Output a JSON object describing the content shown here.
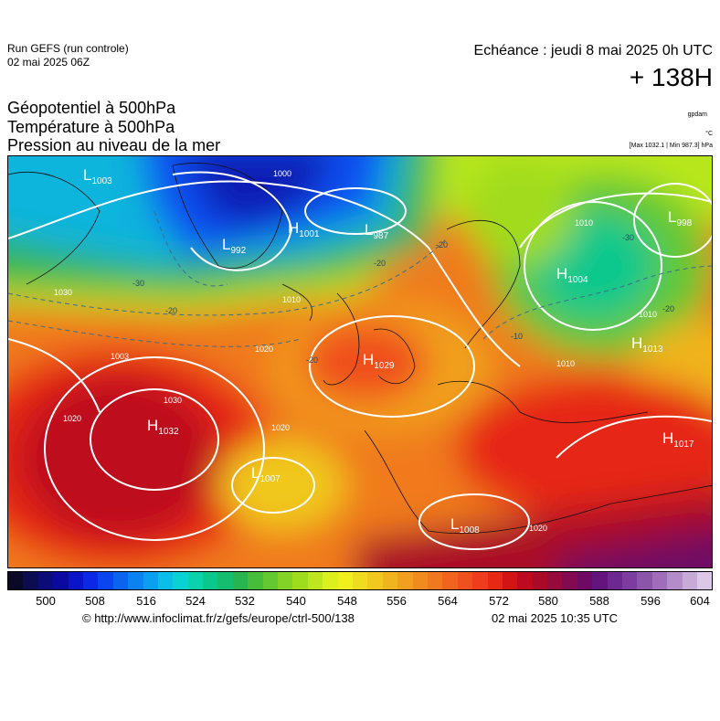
{
  "header": {
    "run_name": "Run GEFS (run controle)",
    "run_date": "02 mai 2025 06Z",
    "echeance": "Echéance : jeudi 8 mai 2025 0h UTC",
    "lead_time": "+ 138H",
    "titles": [
      "Géopotentiel à 500hPa",
      "Température à 500hPa",
      "Pression au niveau de la mer"
    ],
    "unit_gpdam": "gpdam",
    "unit_celsius": "°C",
    "minmax": "[Max 1032.1 | Min 987.3] hPa"
  },
  "map": {
    "centers": [
      {
        "type": "H",
        "value": "1032"
      },
      {
        "type": "H",
        "value": "1029"
      },
      {
        "type": "H",
        "value": "1001"
      },
      {
        "type": "H",
        "value": "1013"
      },
      {
        "type": "H",
        "value": "1017"
      },
      {
        "type": "H",
        "value": "1004"
      },
      {
        "type": "L",
        "value": "992"
      },
      {
        "type": "L",
        "value": "1003"
      },
      {
        "type": "L",
        "value": "1007"
      },
      {
        "type": "L",
        "value": "1008"
      },
      {
        "type": "L",
        "value": "998"
      },
      {
        "type": "L",
        "value": "987"
      }
    ],
    "isobar_labels": [
      "1030",
      "1030",
      "1020",
      "1020",
      "1020",
      "1010",
      "1010",
      "1010",
      "1000",
      "1010",
      "1020",
      "1003"
    ],
    "temp_labels": [
      "-30",
      "-20",
      "-20",
      "-20",
      "-20",
      "-10",
      "-30",
      "-20"
    ]
  },
  "colorbar": {
    "colors": [
      "#0a0a28",
      "#0c0c50",
      "#0c0c78",
      "#0a0aa0",
      "#0a14c8",
      "#0a28e6",
      "#0a46f0",
      "#0a64f0",
      "#0a82f0",
      "#0aa0f0",
      "#0abee6",
      "#0ad2d2",
      "#0ad2aa",
      "#0ac88c",
      "#14be6e",
      "#28b450",
      "#46be3c",
      "#64c832",
      "#82d228",
      "#a0dc1e",
      "#bee61e",
      "#dcf01e",
      "#f0f01e",
      "#f0dc1e",
      "#f0c81e",
      "#f0b41e",
      "#f0a01e",
      "#f08c1e",
      "#f0781e",
      "#f0641e",
      "#f0501e",
      "#f03c1e",
      "#e62814",
      "#d21414",
      "#be0a1e",
      "#aa0a28",
      "#960a3c",
      "#820a50",
      "#6e0a64",
      "#64147d",
      "#6e2891",
      "#7d3ca0",
      "#8c55aa",
      "#a06eb9",
      "#b48cc8",
      "#c8aad7",
      "#dcc8e6"
    ],
    "ticks": [
      "500",
      "508",
      "516",
      "524",
      "532",
      "540",
      "548",
      "556",
      "564",
      "572",
      "580",
      "588",
      "596",
      "604"
    ]
  },
  "footer": {
    "credit": "© http://www.infoclimat.fr/z/gefs/europe/ctrl-500/138",
    "timestamp": "02 mai 2025 10:35 UTC"
  }
}
